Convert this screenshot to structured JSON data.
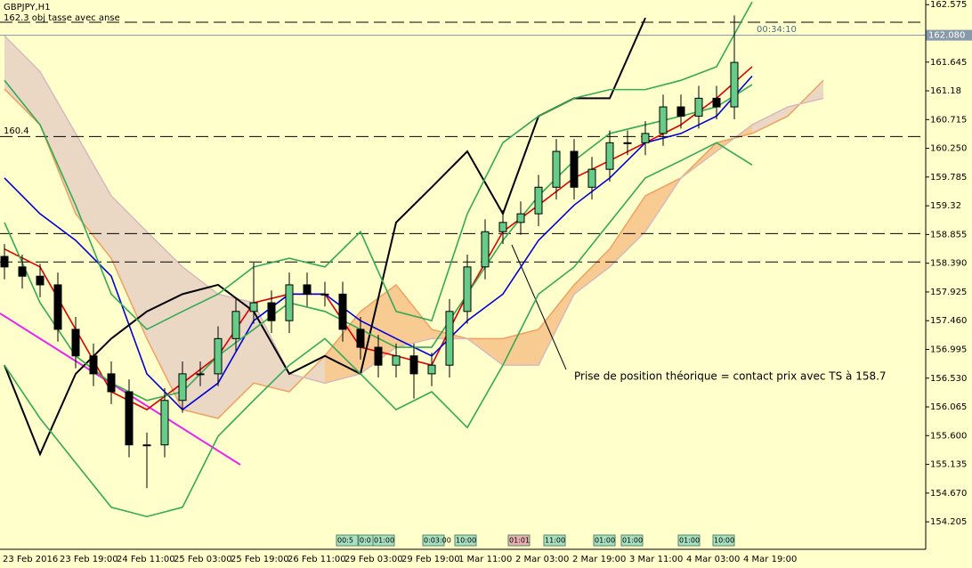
{
  "chart_data": {
    "type": "candlestick",
    "title": "GBPJPY,H1",
    "subtitle": "162.3 obj tasse avec anse",
    "timer": "00:34:10",
    "annotation": "Prise de position théorique  = contact prix avec TS à 158.7",
    "level_label": "160.4",
    "current_price": {
      "value": 162.08,
      "label": "162.080"
    },
    "levels": [
      162.29,
      160.44,
      158.87,
      158.41
    ],
    "ylim": [
      153.76,
      162.65
    ],
    "yticks": [
      162.575,
      161.645,
      161.18,
      160.715,
      {
        "value": 160.25,
        "label": "160.250"
      },
      159.785,
      159.32,
      158.855,
      {
        "value": 158.39,
        "label": "158.390"
      },
      157.925,
      {
        "value": 157.46,
        "label": "157.460"
      },
      156.995,
      {
        "value": 156.53,
        "label": "156.530"
      },
      156.065,
      {
        "value": 155.6,
        "label": "155.600"
      },
      155.135,
      {
        "value": 154.67,
        "label": "154.670"
      },
      154.205
    ],
    "xtick_labels": [
      "23 Feb 2016",
      "23 Feb 19:00",
      "24 Feb 11:00",
      "25 Feb 03:00",
      "25 Feb 19:00",
      "26 Feb 11:00",
      "29 Feb 03:00",
      "29 Feb 19:00",
      "1 Mar 11:00",
      "2 Mar 03:00",
      "2 Mar 19:00",
      "3 Mar 11:00",
      "4 Mar 03:00",
      "4 Mar 19:00"
    ],
    "session_labels": [
      "00:5",
      "0:0",
      "01:00",
      "0:03:00",
      "10:00",
      "01:01",
      "11:00",
      "01:00",
      "01:00",
      "01:00",
      "10:00"
    ],
    "candles": {
      "open": [
        158.5,
        158.33,
        158.18,
        158.04,
        157.32,
        156.89,
        156.6,
        156.31,
        155.45,
        155.45,
        156.17,
        156.6,
        156.6,
        157.17,
        157.61,
        157.75,
        157.46,
        158.04,
        157.89,
        157.89,
        157.32,
        157.03,
        156.74,
        156.89,
        156.6,
        156.74,
        157.61,
        158.33,
        158.9,
        159.05,
        159.19,
        159.62,
        160.2,
        159.62,
        159.91,
        160.34,
        160.34,
        160.49,
        160.92,
        160.77,
        161.06,
        160.92
      ],
      "high": [
        158.7,
        158.53,
        158.38,
        158.24,
        157.52,
        157.09,
        156.8,
        156.51,
        155.65,
        156.37,
        156.8,
        156.8,
        157.37,
        157.81,
        158.4,
        157.95,
        158.24,
        158.24,
        158.09,
        158.09,
        157.52,
        157.23,
        157.09,
        157.09,
        156.94,
        157.81,
        158.53,
        159.1,
        159.25,
        159.39,
        159.82,
        160.4,
        160.4,
        160.11,
        160.54,
        160.54,
        160.69,
        161.12,
        161.12,
        161.26,
        161.26,
        162.4
      ],
      "low": [
        158.13,
        157.98,
        157.84,
        157.12,
        156.69,
        156.4,
        156.11,
        155.25,
        154.75,
        155.25,
        155.97,
        156.4,
        156.4,
        156.97,
        157.41,
        157.26,
        157.26,
        157.69,
        157.69,
        157.12,
        156.83,
        156.54,
        156.54,
        156.2,
        156.4,
        156.54,
        157.41,
        158.13,
        158.7,
        158.85,
        158.99,
        159.42,
        159.42,
        159.42,
        159.71,
        160.14,
        160.14,
        160.29,
        160.57,
        160.57,
        160.72,
        160.72
      ],
      "close": [
        158.33,
        158.18,
        158.04,
        157.32,
        156.89,
        156.6,
        156.31,
        155.45,
        155.45,
        156.17,
        156.6,
        156.6,
        157.17,
        157.61,
        157.75,
        157.46,
        158.04,
        157.89,
        157.89,
        157.32,
        157.03,
        156.74,
        156.89,
        156.6,
        156.74,
        157.61,
        158.33,
        158.9,
        159.05,
        159.19,
        159.62,
        160.2,
        159.62,
        159.91,
        160.34,
        160.34,
        160.49,
        160.92,
        160.77,
        161.06,
        160.92,
        161.64
      ]
    },
    "cloud": {
      "colors": [
        "#f0a060",
        "#d8b8c0"
      ],
      "senkou_a": [
        161.21,
        160.63,
        159.19,
        158.47,
        157.17,
        156.02,
        155.88,
        156.45,
        156.31,
        156.89,
        157.61,
        158.04,
        157.32,
        157.17,
        157.17,
        157.32,
        158.04,
        158.62,
        159.48,
        159.77,
        160.34,
        160.49,
        160.77,
        161.35
      ],
      "senkou_b": [
        162.07,
        161.49,
        160.49,
        159.48,
        158.9,
        158.33,
        157.89,
        157.75,
        156.6,
        156.45,
        156.6,
        157.03,
        157.17,
        157.17,
        156.74,
        156.74,
        157.89,
        158.33,
        158.9,
        159.77,
        160.2,
        160.63,
        160.92,
        161.06
      ]
    },
    "series": [
      {
        "color": "#dd0000",
        "values": [
          158.62,
          158.33,
          157.32,
          156.31,
          156.02,
          156.45,
          156.89,
          157.75,
          157.89,
          157.89,
          157.03,
          156.89,
          156.74,
          157.89,
          158.9,
          159.33,
          159.77,
          160.05,
          160.34,
          160.63,
          161.06,
          161.57,
          null,
          null
        ]
      },
      {
        "color": "#0000dd",
        "values": [
          159.77,
          159.19,
          158.76,
          158.18,
          156.6,
          156.02,
          156.45,
          157.46,
          157.89,
          157.89,
          157.46,
          157.17,
          156.89,
          157.46,
          157.89,
          158.76,
          159.33,
          159.77,
          160.34,
          160.49,
          160.77,
          161.42,
          null,
          null
        ]
      },
      {
        "color": "#000000",
        "values": [
          156.74,
          155.3,
          156.6,
          157.17,
          157.61,
          157.89,
          158.04,
          157.61,
          156.6,
          156.89,
          156.6,
          159.05,
          159.62,
          160.2,
          159.19,
          160.77,
          161.06,
          161.06,
          162.36,
          null,
          null,
          null,
          null,
          null
        ]
      },
      {
        "color": "#33aa55",
        "values": [
          161.35,
          160.63,
          159.33,
          157.89,
          157.32,
          157.61,
          157.89,
          158.33,
          158.47,
          158.33,
          158.9,
          157.61,
          157.46,
          159.19,
          160.34,
          160.77,
          161.06,
          161.2,
          161.2,
          161.35,
          161.57,
          162.62,
          null,
          null
        ]
      },
      {
        "color": "#33aa55",
        "values": [
          159.05,
          157.75,
          156.89,
          156.45,
          156.17,
          156.31,
          156.89,
          157.32,
          157.75,
          157.61,
          157.32,
          157.03,
          157.03,
          157.89,
          158.76,
          159.48,
          160.05,
          160.49,
          160.63,
          160.77,
          160.92,
          161.28,
          null,
          null
        ]
      },
      {
        "color": "#33aa55",
        "values": [
          156.74,
          155.88,
          155.16,
          154.44,
          154.29,
          154.44,
          155.59,
          156.17,
          156.74,
          157.17,
          156.6,
          156.02,
          156.31,
          155.73,
          156.74,
          157.89,
          158.33,
          159.05,
          159.77,
          160.05,
          160.34,
          159.98,
          null,
          null
        ]
      }
    ]
  }
}
